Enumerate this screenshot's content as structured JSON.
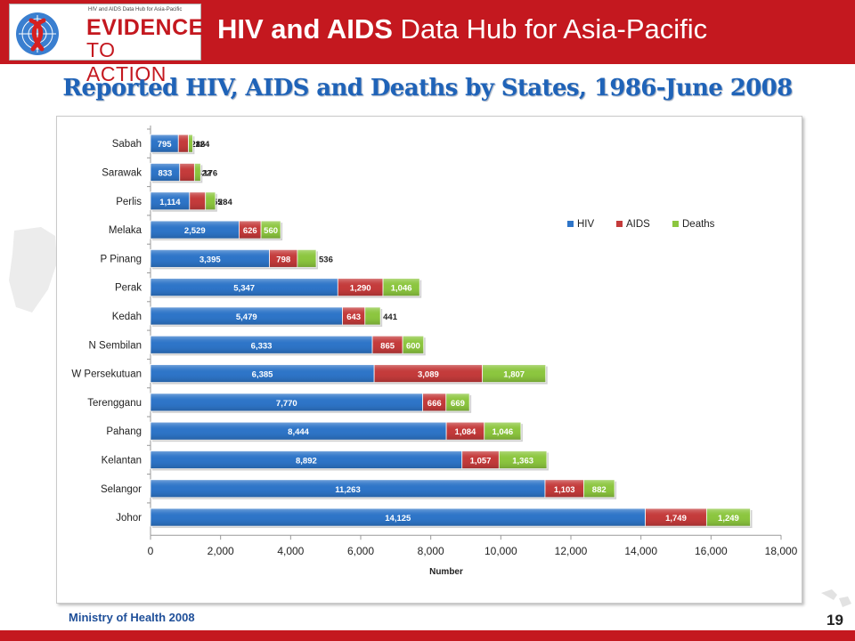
{
  "header": {
    "logo_small_text": "HIV and AIDS Data Hub for Asia-Pacific",
    "logo_line1": "EVIDENCE",
    "logo_line2": "TO ACTION",
    "title_bold": "HIV and AIDS",
    "title_rest": " Data Hub for Asia-Pacific"
  },
  "slide_title": "Reported HIV, AIDS and Deaths by States, 1986-June 2008",
  "footer": {
    "source": "Ministry of Health 2008",
    "page_number": "19"
  },
  "colors": {
    "header_red": "#c4181f",
    "title_blue": "#1f63b8",
    "hiv": "#2e75c8",
    "aids": "#c43b3b",
    "deaths": "#8cc63f"
  },
  "chart_data": {
    "type": "bar",
    "orientation": "horizontal",
    "stacked": true,
    "categories": [
      "Sabah",
      "Sarawak",
      "Perlis",
      "Melaka",
      "P Pinang",
      "Perak",
      "Kedah",
      "N Sembilan",
      "W Persekutuan",
      "Terengganu",
      "Pahang",
      "Kelantan",
      "Selangor",
      "Johor"
    ],
    "series": [
      {
        "name": "HIV",
        "values": [
          795,
          833,
          1114,
          2529,
          3395,
          5347,
          5479,
          6333,
          6385,
          7770,
          8444,
          8892,
          11263,
          14125
        ]
      },
      {
        "name": "AIDS",
        "values": [
          286,
          422,
          455,
          626,
          798,
          1290,
          643,
          865,
          3089,
          666,
          1084,
          1057,
          1103,
          1749
        ]
      },
      {
        "name": "Deaths",
        "values": [
          124,
          176,
          284,
          560,
          536,
          1046,
          441,
          600,
          1807,
          669,
          1046,
          1363,
          882,
          1249
        ]
      }
    ],
    "xlabel": "Number",
    "xlim": [
      0,
      18000
    ],
    "xticks": [
      0,
      2000,
      4000,
      6000,
      8000,
      10000,
      12000,
      14000,
      16000,
      18000
    ],
    "legend_position": "right",
    "grid": false
  }
}
